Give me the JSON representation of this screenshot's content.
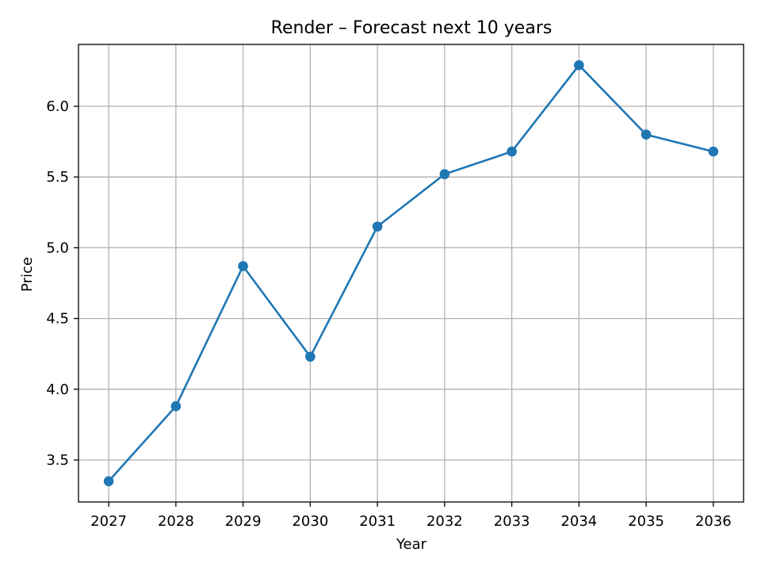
{
  "chart_data": {
    "type": "line",
    "title": "Render – Forecast next 10 years",
    "xlabel": "Year",
    "ylabel": "Price",
    "x": [
      2027,
      2028,
      2029,
      2030,
      2031,
      2032,
      2033,
      2034,
      2035,
      2036
    ],
    "series": [
      {
        "values": [
          3.35,
          3.88,
          4.87,
          4.23,
          5.15,
          5.52,
          5.68,
          6.29,
          5.8,
          5.68
        ],
        "color": "#1f77b4",
        "marker": "circle"
      }
    ],
    "xticks": [
      "2027",
      "2028",
      "2029",
      "2030",
      "2031",
      "2032",
      "2033",
      "2034",
      "2035",
      "2036"
    ],
    "yticks": [
      "3.5",
      "4.0",
      "4.5",
      "5.0",
      "5.5",
      "6.0"
    ],
    "ytick_values": [
      3.5,
      4.0,
      4.5,
      5.0,
      5.5,
      6.0
    ],
    "xlim": [
      2026.55,
      2036.45
    ],
    "ylim": [
      3.203,
      6.437
    ],
    "grid": true,
    "legend": "none"
  }
}
